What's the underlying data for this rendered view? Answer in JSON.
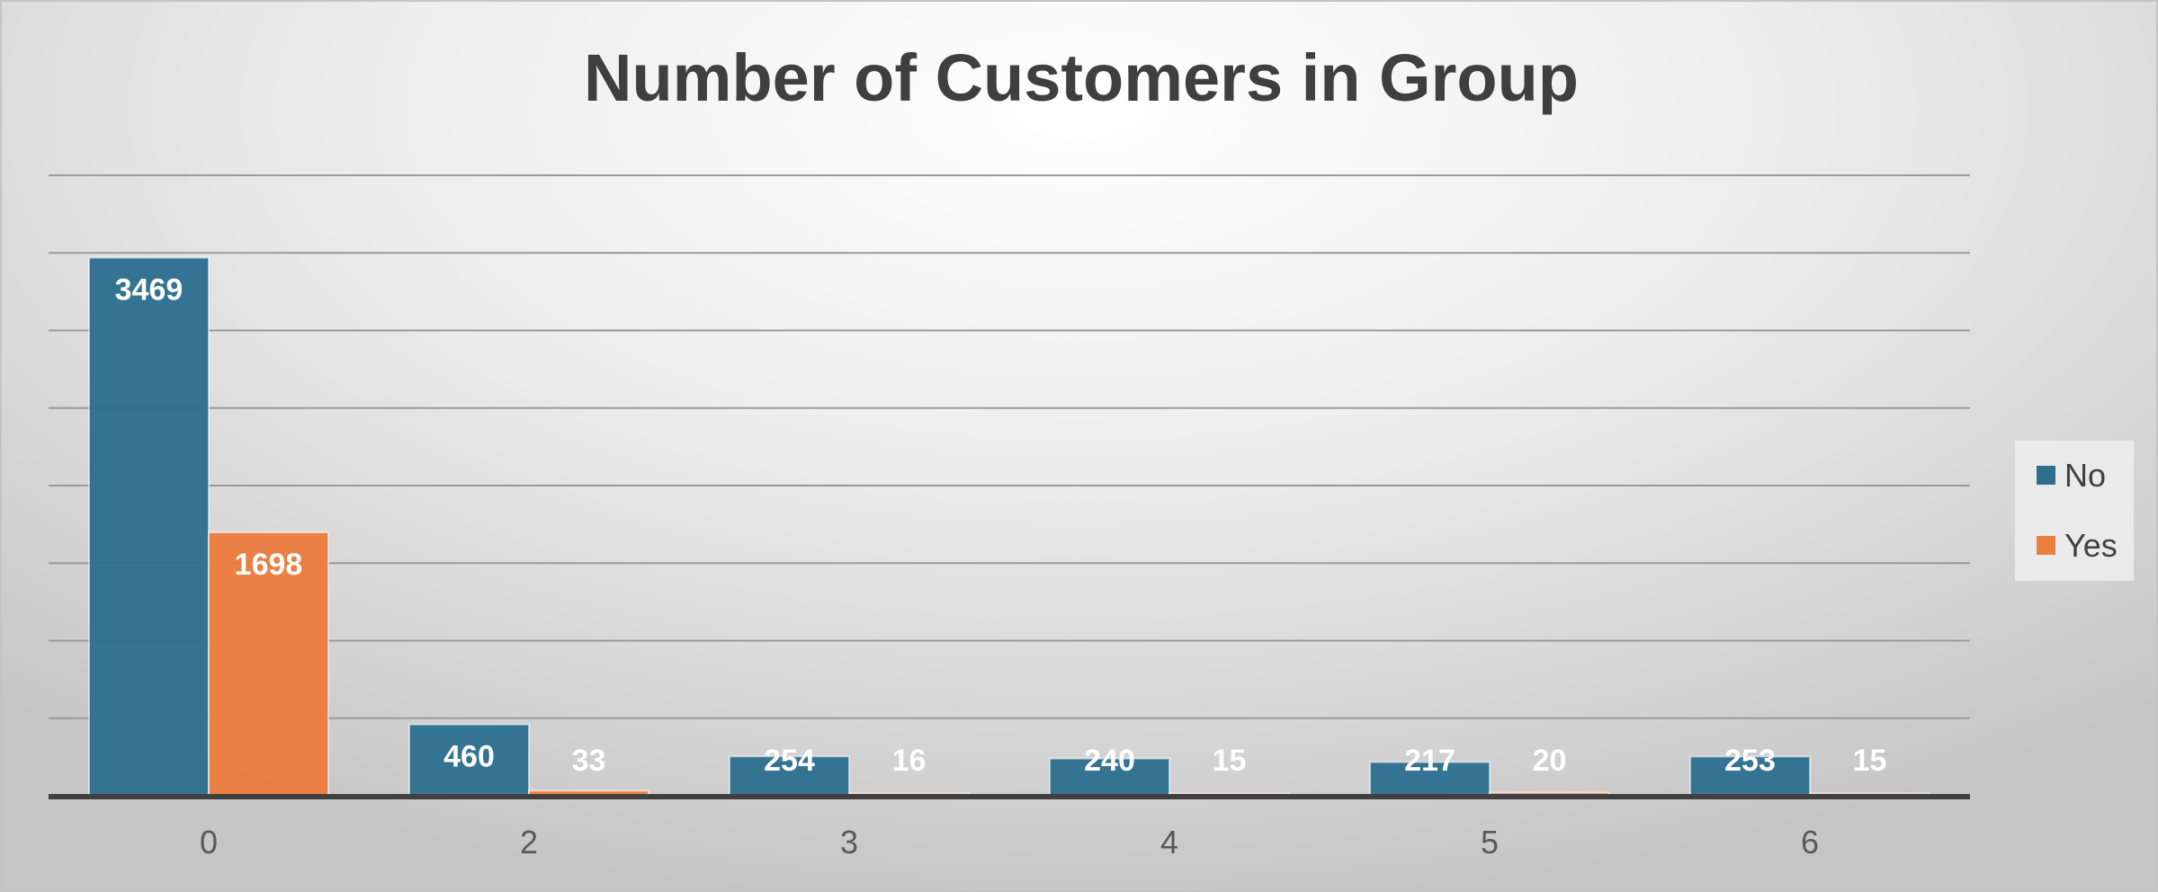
{
  "chart_data": {
    "type": "bar",
    "title": "Number of Customers in Group",
    "xlabel": "",
    "ylabel": "",
    "categories": [
      "0",
      "2",
      "3",
      "4",
      "5",
      "6"
    ],
    "series": [
      {
        "name": "No",
        "color": "#2e6f8e",
        "values": [
          3469,
          460,
          254,
          240,
          217,
          253
        ]
      },
      {
        "name": "Yes",
        "color": "#ea7d40",
        "values": [
          1698,
          33,
          16,
          15,
          20,
          15
        ]
      }
    ],
    "ylim": [
      0,
      4000
    ],
    "grid": true,
    "legend": "right",
    "colors": {
      "axis": "#404040",
      "grid": "#9a9a9a",
      "data_label": "#ffffff"
    }
  }
}
